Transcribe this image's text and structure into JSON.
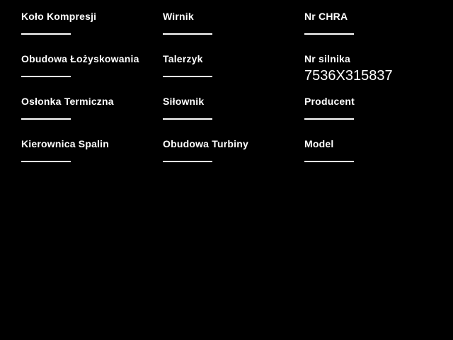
{
  "page": {
    "background_color": "#000000",
    "text_color": "#ffffff",
    "underline_color": "#ffffff"
  },
  "form": {
    "fields": [
      {
        "id": "kolo-kompresji",
        "label": "Koło Kompresji",
        "value": ""
      },
      {
        "id": "wirnik",
        "label": "Wirnik",
        "value": ""
      },
      {
        "id": "nr-chra",
        "label": "Nr CHRA",
        "value": ""
      },
      {
        "id": "obudowa-lozyskowania",
        "label": "Obudowa Łożyskowania",
        "value": ""
      },
      {
        "id": "talerzyk",
        "label": "Talerzyk",
        "value": ""
      },
      {
        "id": "nr-silnika",
        "label": "Nr silnika",
        "value": "7536X315837"
      },
      {
        "id": "oslonka-termiczna",
        "label": "Osłonka Termiczna",
        "value": ""
      },
      {
        "id": "silownik",
        "label": "Siłownik",
        "value": ""
      },
      {
        "id": "producent",
        "label": "Producent",
        "value": ""
      },
      {
        "id": "kierownica-spalin",
        "label": "Kierownica Spalin",
        "value": ""
      },
      {
        "id": "obudowa-turbiny",
        "label": "Obudowa Turbiny",
        "value": ""
      },
      {
        "id": "model",
        "label": "Model",
        "value": ""
      }
    ]
  }
}
